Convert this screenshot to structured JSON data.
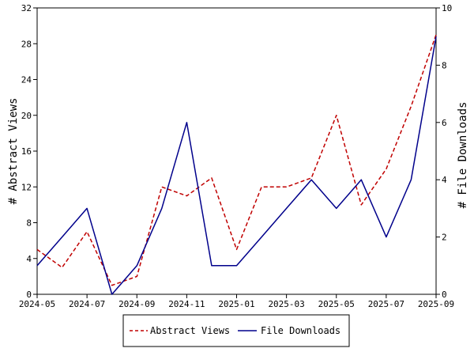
{
  "chart_data": {
    "type": "line",
    "x": [
      "2024-05",
      "2024-06",
      "2024-07",
      "2024-08",
      "2024-09",
      "2024-10",
      "2024-11",
      "2024-12",
      "2025-01",
      "2025-02",
      "2025-03",
      "2025-04",
      "2025-05",
      "2025-06",
      "2025-07",
      "2025-08",
      "2025-09"
    ],
    "x_ticks": [
      "2024-05",
      "2024-07",
      "2024-09",
      "2024-11",
      "2025-01",
      "2025-03",
      "2025-05",
      "2025-07",
      "2025-09"
    ],
    "ylabel": "# Abstract Views",
    "y2label": "# File Downloads",
    "ylim": [
      0,
      32
    ],
    "y_ticks": [
      "0",
      "4",
      "8",
      "12",
      "16",
      "20",
      "24",
      "28",
      "32"
    ],
    "y2lim": [
      0,
      10
    ],
    "y2_ticks": [
      "0",
      "2",
      "4",
      "6",
      "8",
      "10"
    ],
    "grid": false,
    "legend_position": "bottom",
    "series": [
      {
        "name": "Abstract Views",
        "axis": "left",
        "color": "#c00000",
        "style": "dashed",
        "values": [
          5,
          3,
          7,
          1,
          2,
          12,
          11,
          13,
          5,
          12,
          12,
          13,
          20,
          10,
          14,
          21,
          29
        ]
      },
      {
        "name": "File Downloads",
        "axis": "right",
        "color": "#00008b",
        "style": "solid",
        "values": [
          1,
          2,
          3,
          0,
          1,
          3,
          6,
          1,
          1,
          2,
          3,
          4,
          3,
          4,
          2,
          4,
          9
        ]
      }
    ]
  }
}
